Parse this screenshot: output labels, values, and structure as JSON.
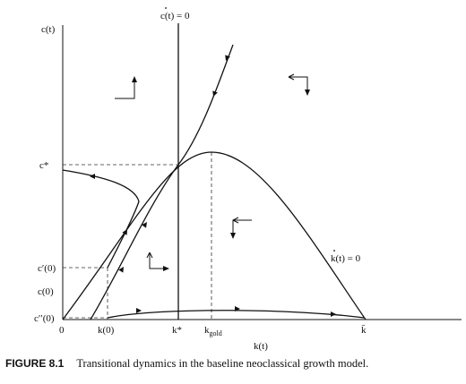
{
  "figure": {
    "axes": {
      "y_label": "c(t)",
      "x_label": "k(t)",
      "origin_label": "0",
      "y_ticks": [
        "c*",
        "c′(0)",
        "c(0)",
        "c′′(0)"
      ],
      "x_ticks": [
        "k(0)",
        "k*",
        "k",
        "k̄"
      ],
      "x_tick_gold_subscript": "gold"
    },
    "curve_labels": {
      "c_dot_zero": "c(t) = 0",
      "k_dot_zero": "k(t) = 0"
    },
    "caption": {
      "label": "FIGURE 8.1",
      "text": "Transitional dynamics in the baseline neoclassical growth model."
    }
  }
}
